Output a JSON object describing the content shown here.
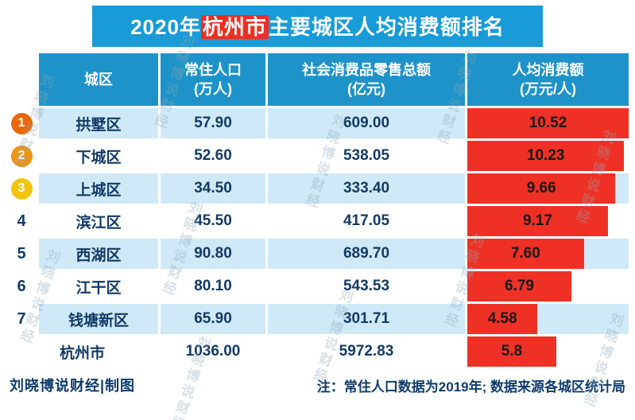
{
  "title": {
    "prefix": "2020年",
    "highlight": "杭州市",
    "suffix": "主要城区人均消费额排名"
  },
  "table": {
    "headers": {
      "district": "城区",
      "population_name": "常住人口",
      "population_unit": "(万人)",
      "retail_name": "社会消费品零售总额",
      "retail_unit": "(亿元)",
      "per_capita_name": "人均消费额",
      "per_capita_unit": "(万元/人)"
    },
    "rows": [
      {
        "rank": "1",
        "district": "拱墅区",
        "population": "57.90",
        "retail": "609.00",
        "per_capita": "10.52"
      },
      {
        "rank": "2",
        "district": "下城区",
        "population": "52.60",
        "retail": "538.05",
        "per_capita": "10.23"
      },
      {
        "rank": "3",
        "district": "上城区",
        "population": "34.50",
        "retail": "333.40",
        "per_capita": "9.66"
      },
      {
        "rank": "4",
        "district": "滨江区",
        "population": "45.50",
        "retail": "417.05",
        "per_capita": "9.17"
      },
      {
        "rank": "5",
        "district": "西湖区",
        "population": "90.80",
        "retail": "689.70",
        "per_capita": "7.60"
      },
      {
        "rank": "6",
        "district": "江干区",
        "population": "80.10",
        "retail": "543.53",
        "per_capita": "6.79"
      },
      {
        "rank": "7",
        "district": "钱塘新区",
        "population": "65.90",
        "retail": "301.71",
        "per_capita": "4.58"
      },
      {
        "rank": "",
        "district": "杭州市",
        "population": "1036.00",
        "retail": "5972.83",
        "per_capita": "5.8"
      }
    ]
  },
  "footer": {
    "credit": "刘晓博说财经|制图",
    "note": "注：常住人口数据为2019年; 数据来源各城区统计局"
  },
  "watermark": {
    "text": "刘晓博说财经"
  },
  "colors": {
    "title_blue": "#189bd7",
    "header_blue": "#1e93c9",
    "highlight_red": "#ee2e24",
    "bar_red": "#ee3124",
    "row_light_blue": "#cfe9f7",
    "text_navy": "#123a66",
    "badge_1": "#e8690b",
    "badge_2": "#f0930f",
    "badge_3": "#f2c40e"
  },
  "chart_data": {
    "type": "table",
    "title": "2020年杭州市主要城区人均消费额排名",
    "columns": [
      "城区",
      "常住人口(万人)",
      "社会消费品零售总额(亿元)",
      "人均消费额(万元/人)"
    ],
    "rows": [
      [
        "拱墅区",
        57.9,
        609.0,
        10.52
      ],
      [
        "下城区",
        52.6,
        538.05,
        10.23
      ],
      [
        "上城区",
        34.5,
        333.4,
        9.66
      ],
      [
        "滨江区",
        45.5,
        417.05,
        9.17
      ],
      [
        "西湖区",
        90.8,
        689.7,
        7.6
      ],
      [
        "江干区",
        80.1,
        543.53,
        6.79
      ],
      [
        "钱塘新区",
        65.9,
        301.71,
        4.58
      ],
      [
        "杭州市",
        1036.0,
        5972.83,
        5.8
      ]
    ],
    "bar_column": "人均消费额(万元/人)",
    "bar_max": 10.52,
    "note": "注：常住人口数据为2019年; 数据来源各城区统计局"
  }
}
